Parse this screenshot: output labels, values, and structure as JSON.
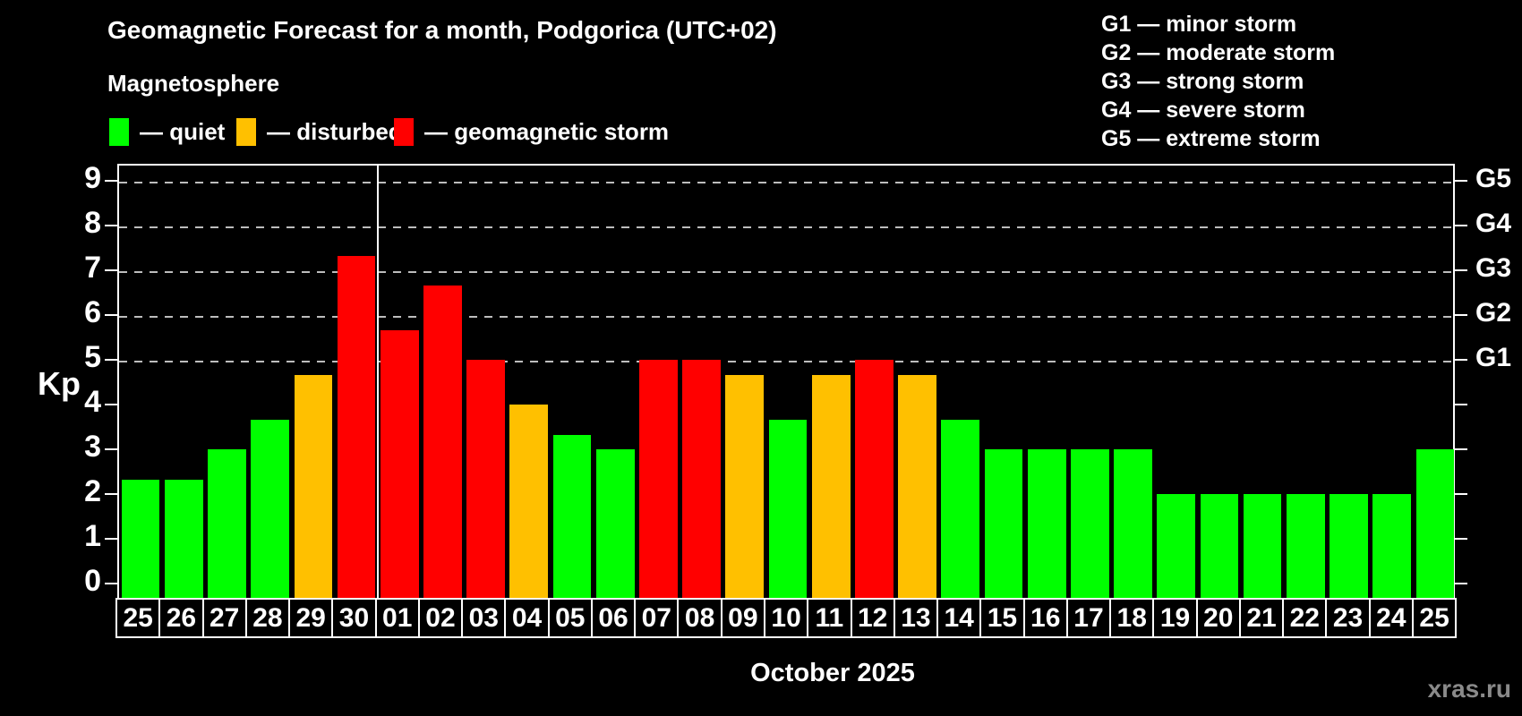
{
  "title": "Geomagnetic Forecast for a month, Podgorica (UTC+02)",
  "subtitle": "Magnetosphere",
  "legend": {
    "items": [
      {
        "key": "quiet",
        "label": "— quiet",
        "color": "#00ff00"
      },
      {
        "key": "disturbed",
        "label": "— disturbed",
        "color": "#ffc000"
      },
      {
        "key": "storm",
        "label": "— geomagnetic storm",
        "color": "#ff0000"
      }
    ]
  },
  "g_legend": {
    "lines": [
      "G1 — minor storm",
      "G2 — moderate storm",
      "G3 — strong storm",
      "G4 — severe storm",
      "G5 — extreme storm"
    ]
  },
  "axis": {
    "kp_label": "Kp",
    "y_ticks": [
      0,
      1,
      2,
      3,
      4,
      5,
      6,
      7,
      8,
      9
    ],
    "y_gridlines": [
      5,
      6,
      7,
      8,
      9
    ],
    "right_labels": [
      {
        "kp": 5,
        "label": "G1"
      },
      {
        "kp": 6,
        "label": "G2"
      },
      {
        "kp": 7,
        "label": "G3"
      },
      {
        "kp": 8,
        "label": "G4"
      },
      {
        "kp": 9,
        "label": "G5"
      }
    ]
  },
  "x_axis": {
    "month_label": "October 2025"
  },
  "watermark": "xras.ru",
  "chart_data": {
    "type": "bar",
    "title": "Geomagnetic Forecast for a month, Podgorica (UTC+02)",
    "xlabel": "October 2025",
    "ylabel": "Kp",
    "ylim": [
      0,
      9.4
    ],
    "grid": "dashed horizontal at Kp 5-9",
    "legend_position": "top-left and top-right",
    "x": [
      "25",
      "26",
      "27",
      "28",
      "29",
      "30",
      "01",
      "02",
      "03",
      "04",
      "05",
      "06",
      "07",
      "08",
      "09",
      "10",
      "11",
      "12",
      "13",
      "14",
      "15",
      "16",
      "17",
      "18",
      "19",
      "20",
      "21",
      "22",
      "23",
      "24",
      "25"
    ],
    "values": [
      2.33,
      2.33,
      3.0,
      3.67,
      4.67,
      7.33,
      5.67,
      6.67,
      5.0,
      4.0,
      3.33,
      3.0,
      5.0,
      5.0,
      4.67,
      3.67,
      4.67,
      5.0,
      4.67,
      3.67,
      3.0,
      3.0,
      3.0,
      3.0,
      2.0,
      2.0,
      2.0,
      2.0,
      2.0,
      2.0,
      3.0
    ],
    "status": [
      "quiet",
      "quiet",
      "quiet",
      "quiet",
      "disturbed",
      "storm",
      "storm",
      "storm",
      "storm",
      "disturbed",
      "quiet",
      "quiet",
      "storm",
      "storm",
      "disturbed",
      "quiet",
      "disturbed",
      "storm",
      "disturbed",
      "quiet",
      "quiet",
      "quiet",
      "quiet",
      "quiet",
      "quiet",
      "quiet",
      "quiet",
      "quiet",
      "quiet",
      "quiet",
      "quiet"
    ],
    "series_colors": {
      "quiet": "#00ff00",
      "disturbed": "#ffc000",
      "storm": "#ff0000"
    },
    "month_separator_after_index": 5,
    "right_axis_labels": {
      "5": "G1",
      "6": "G2",
      "7": "G3",
      "8": "G4",
      "9": "G5"
    }
  }
}
